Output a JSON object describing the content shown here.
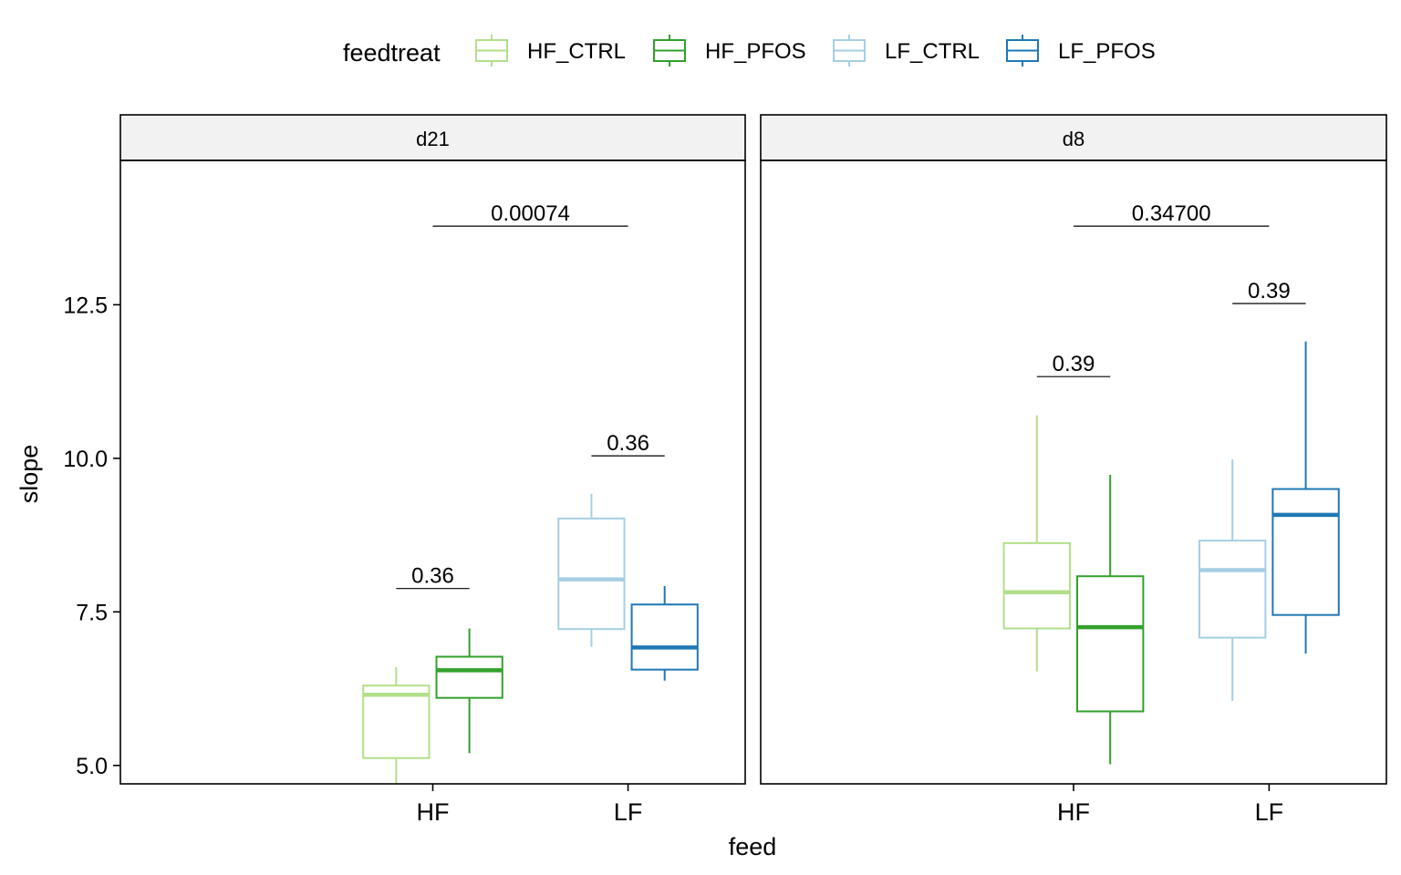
{
  "chart_data": {
    "type": "boxplot",
    "xlabel": "feed",
    "ylabel": "slope",
    "y_ticks": [
      "5.0",
      "7.5",
      "10.0",
      "12.5"
    ],
    "y_tick_values": [
      5.0,
      7.5,
      10.0,
      12.5
    ],
    "ylim": [
      4.7,
      14.85
    ],
    "legend": {
      "title": "feedtreat",
      "placement": "top",
      "entries": [
        {
          "label": "HF_CTRL",
          "color": "#b2df8a"
        },
        {
          "label": "HF_PFOS",
          "color": "#33a02c"
        },
        {
          "label": "LF_CTRL",
          "color": "#a6cee3"
        },
        {
          "label": "LF_PFOS",
          "color": "#1f78b4"
        }
      ]
    },
    "panels": [
      {
        "facet": "d21",
        "categories": [
          "HF",
          "LF"
        ],
        "boxes": [
          {
            "group": "HF_CTRL",
            "category": "HF",
            "whisker_low": 4.68,
            "q1": 5.12,
            "median": 6.15,
            "q3": 6.3,
            "whisker_high": 6.6
          },
          {
            "group": "HF_PFOS",
            "category": "HF",
            "whisker_low": 5.2,
            "q1": 6.1,
            "median": 6.55,
            "q3": 6.77,
            "whisker_high": 7.23
          },
          {
            "group": "LF_CTRL",
            "category": "LF",
            "whisker_low": 6.93,
            "q1": 7.22,
            "median": 8.03,
            "q3": 9.02,
            "whisker_high": 9.42
          },
          {
            "group": "LF_PFOS",
            "category": "LF",
            "whisker_low": 6.38,
            "q1": 6.56,
            "median": 6.92,
            "q3": 7.62,
            "whisker_high": 7.92
          }
        ],
        "annotations": [
          {
            "label": "0.36",
            "x_from": "HF_CTRL",
            "x_to": "HF_PFOS",
            "y": 7.88
          },
          {
            "label": "0.36",
            "x_from": "LF_CTRL",
            "x_to": "LF_PFOS",
            "y": 10.04
          },
          {
            "label": "0.00074",
            "x_from": "HF",
            "x_to": "LF",
            "y": 13.78
          }
        ]
      },
      {
        "facet": "d8",
        "categories": [
          "HF",
          "LF"
        ],
        "boxes": [
          {
            "group": "HF_CTRL",
            "category": "HF",
            "whisker_low": 6.53,
            "q1": 7.23,
            "median": 7.82,
            "q3": 8.62,
            "whisker_high": 10.7
          },
          {
            "group": "HF_PFOS",
            "category": "HF",
            "whisker_low": 5.02,
            "q1": 5.88,
            "median": 7.25,
            "q3": 8.08,
            "whisker_high": 9.73
          },
          {
            "group": "LF_CTRL",
            "category": "LF",
            "whisker_low": 6.05,
            "q1": 7.08,
            "median": 8.18,
            "q3": 8.66,
            "whisker_high": 9.98
          },
          {
            "group": "LF_PFOS",
            "category": "LF",
            "whisker_low": 6.82,
            "q1": 7.45,
            "median": 9.08,
            "q3": 9.5,
            "whisker_high": 11.9
          }
        ],
        "annotations": [
          {
            "label": "0.39",
            "x_from": "HF_CTRL",
            "x_to": "HF_PFOS",
            "y": 11.33
          },
          {
            "label": "0.39",
            "x_from": "LF_CTRL",
            "x_to": "LF_PFOS",
            "y": 12.52
          },
          {
            "label": "0.34700",
            "x_from": "HF",
            "x_to": "LF",
            "y": 13.78
          }
        ]
      }
    ]
  }
}
